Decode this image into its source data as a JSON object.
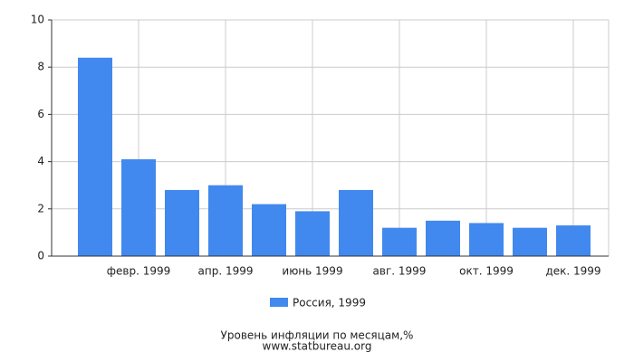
{
  "chart_data": {
    "type": "bar",
    "title": "Уровень инфляции по месяцам,%",
    "subtitle": "www.statbureau.org",
    "categories": [
      null,
      "февр. 1999",
      null,
      "апр. 1999",
      null,
      "июнь 1999",
      null,
      "авг. 1999",
      null,
      "окт. 1999",
      null,
      "дек. 1999"
    ],
    "series": [
      {
        "name": "Россия, 1999",
        "color": "#4189ee",
        "values": [
          8.4,
          4.1,
          2.8,
          3.0,
          2.2,
          1.9,
          2.8,
          1.2,
          1.5,
          1.4,
          1.2,
          1.3
        ]
      }
    ],
    "ylim": [
      0,
      10
    ],
    "yticks": [
      0,
      2,
      4,
      6,
      8,
      10
    ],
    "grid": true
  }
}
